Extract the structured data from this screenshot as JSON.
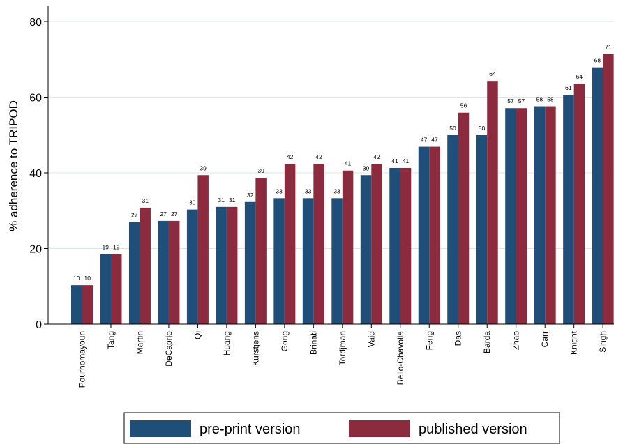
{
  "chart_data": {
    "type": "bar",
    "ylabel": "% adherence to TRIPOD",
    "xlabel": "",
    "ylim": [
      0,
      80
    ],
    "yticks": [
      0,
      20,
      40,
      60,
      80
    ],
    "grid": "horizontal",
    "legend_position": "bottom",
    "categories": [
      "Pourhomayoun",
      "Tang",
      "Martin",
      "DeCaprio",
      "Qi",
      "Huang",
      "Kurstjens",
      "Gong",
      "Brinati",
      "Tordjman",
      "Vaid",
      "Bello-Chavolla",
      "Feng",
      "Das",
      "Barda",
      "Zhao",
      "Carr",
      "Knight",
      "Singh"
    ],
    "series": [
      {
        "name": "pre-print version",
        "color": "#1f4e79",
        "values": [
          10.3,
          18.5,
          27,
          27.3,
          30.3,
          31,
          32.3,
          33.3,
          33.3,
          33.3,
          39.4,
          41.3,
          46.9,
          50,
          50,
          57.1,
          57.6,
          60.6,
          67.9
        ],
        "labels": [
          "10",
          "19",
          "27",
          "27",
          "30",
          "31",
          "32",
          "33",
          "33",
          "33",
          "39",
          "41",
          "47",
          "50",
          "50",
          "57",
          "58",
          "61",
          "68"
        ]
      },
      {
        "name": "published version",
        "color": "#8c2b3d",
        "values": [
          10.3,
          18.5,
          30.8,
          27.3,
          39.4,
          31,
          38.7,
          42.4,
          42.4,
          40.6,
          42.4,
          41.3,
          46.9,
          55.9,
          64.3,
          57.1,
          57.6,
          63.6,
          71.4
        ],
        "labels": [
          "10",
          "19",
          "31",
          "27",
          "39",
          "31",
          "39",
          "42",
          "42",
          "41",
          "42",
          "41",
          "47",
          "56",
          "64",
          "57",
          "58",
          "64",
          "71"
        ]
      }
    ]
  }
}
